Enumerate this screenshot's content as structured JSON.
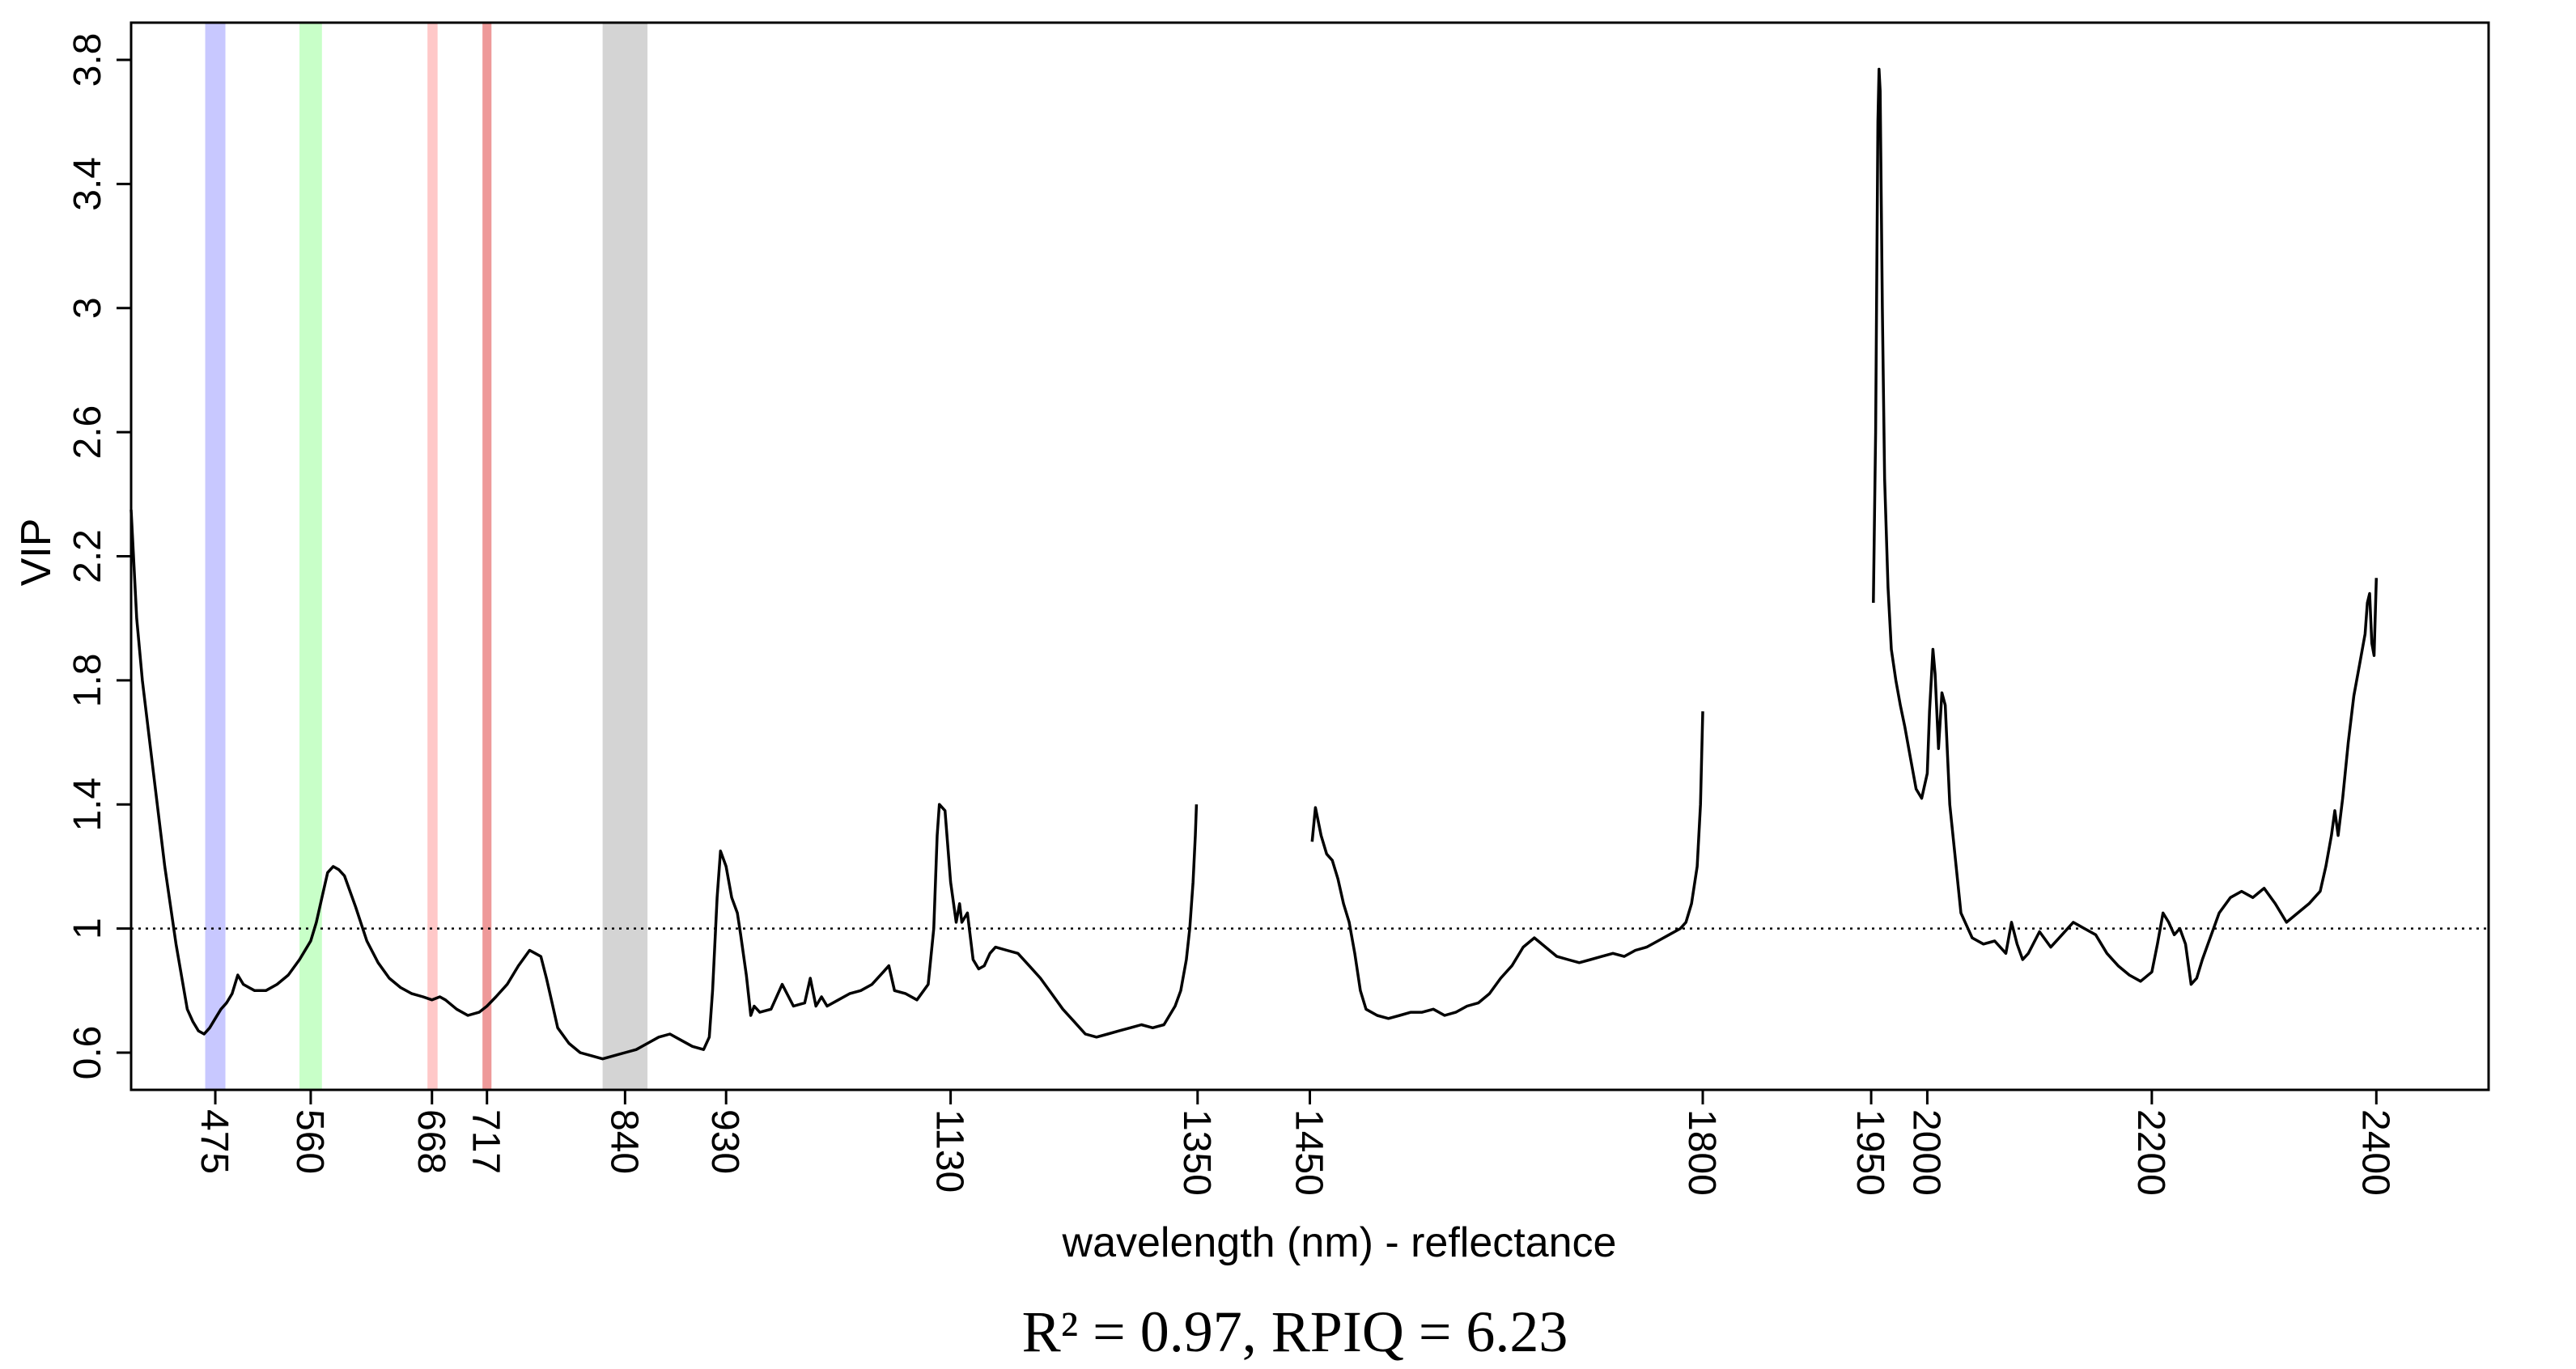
{
  "chart_data": {
    "type": "line",
    "xlabel": "wavelength (nm) - reflectance",
    "ylabel": "VIP",
    "annotation": "R² = 0.97, RPIQ = 6.23",
    "xlim": [
      400,
      2500
    ],
    "ylim": [
      0.48,
      3.92
    ],
    "x_ticks": [
      475,
      560,
      668,
      717,
      840,
      930,
      1130,
      1350,
      1450,
      1800,
      1950,
      2000,
      2200,
      2400
    ],
    "y_ticks": [
      0.6,
      1,
      1.4,
      1.8,
      2.2,
      2.6,
      3,
      3.4,
      3.8
    ],
    "y_tick_labels": [
      "0.6",
      "1",
      "1.4",
      "1.8",
      "2.2",
      "2.6",
      "3",
      "3.4",
      "3.8"
    ],
    "reference_line": {
      "y": 1.0,
      "style": "dotted"
    },
    "bands": [
      {
        "from": 466,
        "to": 484,
        "color": "#c8c8ff"
      },
      {
        "from": 550,
        "to": 570,
        "color": "#c8ffc8"
      },
      {
        "from": 664,
        "to": 673,
        "color": "#ffc8c8"
      },
      {
        "from": 713,
        "to": 721,
        "color": "#ee9999"
      },
      {
        "from": 820,
        "to": 860,
        "color": "#d4d4d4"
      }
    ],
    "grid": false,
    "series": [
      {
        "color": "#000000",
        "segments": [
          {
            "x": [
              400,
              405,
              410,
              420,
              430,
              440,
              450,
              455,
              460,
              465,
              470,
              475,
              480,
              485,
              490,
              495,
              500,
              505,
              510,
              520,
              530,
              540,
              550,
              560,
              565,
              570,
              575,
              580,
              585,
              590,
              600,
              610,
              620,
              630,
              640,
              650,
              660,
              668,
              675,
              680,
              690,
              700,
              710,
              717,
              725,
              735,
              745,
              755,
              760,
              765,
              770,
              775,
              780,
              790,
              800,
              810,
              820,
              830,
              840,
              850,
              860,
              870,
              880,
              890,
              900,
              910,
              915,
              918,
              922,
              925,
              930,
              935,
              940,
              943,
              948,
              952,
              955,
              960,
              970,
              980,
              990,
              1000,
              1005,
              1010,
              1015,
              1020,
              1030,
              1040,
              1050,
              1060,
              1070,
              1075,
              1080,
              1090,
              1100,
              1110,
              1115,
              1118,
              1120,
              1125,
              1130,
              1135,
              1138,
              1140,
              1145,
              1150,
              1155,
              1160,
              1165,
              1170,
              1180,
              1190,
              1200,
              1210,
              1220,
              1230,
              1240,
              1250,
              1260,
              1270,
              1280,
              1290,
              1300,
              1310,
              1320,
              1330,
              1335,
              1340,
              1343,
              1346,
              1348,
              1349
            ],
            "y": [
              2.35,
              2.0,
              1.8,
              1.5,
              1.2,
              0.95,
              0.74,
              0.7,
              0.67,
              0.66,
              0.68,
              0.71,
              0.74,
              0.76,
              0.79,
              0.85,
              0.82,
              0.81,
              0.8,
              0.8,
              0.82,
              0.85,
              0.9,
              0.96,
              1.02,
              1.1,
              1.18,
              1.2,
              1.19,
              1.17,
              1.07,
              0.96,
              0.89,
              0.84,
              0.81,
              0.79,
              0.78,
              0.77,
              0.78,
              0.77,
              0.74,
              0.72,
              0.73,
              0.75,
              0.78,
              0.82,
              0.88,
              0.93,
              0.92,
              0.91,
              0.84,
              0.76,
              0.68,
              0.63,
              0.6,
              0.59,
              0.58,
              0.59,
              0.6,
              0.61,
              0.63,
              0.65,
              0.66,
              0.64,
              0.62,
              0.61,
              0.65,
              0.8,
              1.1,
              1.25,
              1.2,
              1.1,
              1.05,
              0.98,
              0.85,
              0.72,
              0.75,
              0.73,
              0.74,
              0.82,
              0.75,
              0.76,
              0.84,
              0.75,
              0.78,
              0.75,
              0.77,
              0.79,
              0.8,
              0.82,
              0.86,
              0.88,
              0.8,
              0.79,
              0.77,
              0.82,
              1.0,
              1.3,
              1.4,
              1.38,
              1.15,
              1.02,
              1.08,
              1.02,
              1.05,
              0.9,
              0.87,
              0.88,
              0.92,
              0.94,
              0.93,
              0.92,
              0.88,
              0.84,
              0.79,
              0.74,
              0.7,
              0.66,
              0.65,
              0.66,
              0.67,
              0.68,
              0.69,
              0.68,
              0.69,
              0.75,
              0.8,
              0.9,
              1.0,
              1.15,
              1.3,
              1.4
            ]
          },
          {
            "x": [
              1452,
              1455,
              1460,
              1465,
              1470,
              1475,
              1480,
              1485,
              1490,
              1495,
              1500,
              1510,
              1520,
              1530,
              1540,
              1550,
              1560,
              1570,
              1580,
              1590,
              1600,
              1610,
              1620,
              1630,
              1640,
              1650,
              1660,
              1670,
              1680,
              1690,
              1700,
              1710,
              1720,
              1730,
              1740,
              1750,
              1760,
              1770,
              1780,
              1785,
              1790,
              1795,
              1798,
              1800
            ],
            "y": [
              1.28,
              1.39,
              1.3,
              1.24,
              1.22,
              1.16,
              1.08,
              1.02,
              0.92,
              0.8,
              0.74,
              0.72,
              0.71,
              0.72,
              0.73,
              0.73,
              0.74,
              0.72,
              0.73,
              0.75,
              0.76,
              0.79,
              0.84,
              0.88,
              0.94,
              0.97,
              0.94,
              0.91,
              0.9,
              0.89,
              0.9,
              0.91,
              0.92,
              0.91,
              0.93,
              0.94,
              0.96,
              0.98,
              1.0,
              1.02,
              1.08,
              1.2,
              1.4,
              1.7
            ]
          },
          {
            "x": [
              1952,
              1954,
              1955,
              1956,
              1957,
              1958,
              1960,
              1962,
              1965,
              1968,
              1972,
              1976,
              1980,
              1985,
              1990,
              1995,
              2000,
              2002,
              2005,
              2007,
              2010,
              2013,
              2016,
              2020,
              2030,
              2040,
              2050,
              2060,
              2070,
              2075,
              2080,
              2085,
              2090,
              2100,
              2110,
              2120,
              2130,
              2140,
              2150,
              2160,
              2170,
              2180,
              2190,
              2200,
              2205,
              2210,
              2215,
              2220,
              2225,
              2230,
              2235,
              2240,
              2245,
              2250,
              2260,
              2270,
              2280,
              2290,
              2300,
              2310,
              2320,
              2330,
              2340,
              2350,
              2355,
              2360,
              2363,
              2366,
              2370,
              2375,
              2380,
              2385,
              2390,
              2392,
              2394,
              2396,
              2398,
              2400
            ],
            "y": [
              2.05,
              2.6,
              3.1,
              3.6,
              3.77,
              3.7,
              3.0,
              2.45,
              2.1,
              1.9,
              1.8,
              1.72,
              1.65,
              1.55,
              1.45,
              1.42,
              1.5,
              1.7,
              1.9,
              1.82,
              1.58,
              1.76,
              1.72,
              1.4,
              1.05,
              0.97,
              0.95,
              0.96,
              0.92,
              1.02,
              0.95,
              0.9,
              0.92,
              0.99,
              0.94,
              0.98,
              1.02,
              1.0,
              0.98,
              0.92,
              0.88,
              0.85,
              0.83,
              0.86,
              0.95,
              1.05,
              1.02,
              0.98,
              1.0,
              0.95,
              0.82,
              0.84,
              0.9,
              0.95,
              1.05,
              1.1,
              1.12,
              1.1,
              1.13,
              1.08,
              1.02,
              1.05,
              1.08,
              1.12,
              1.2,
              1.3,
              1.38,
              1.3,
              1.42,
              1.6,
              1.75,
              1.85,
              1.95,
              2.05,
              2.08,
              1.92,
              1.88,
              2.13
            ]
          }
        ]
      }
    ]
  }
}
